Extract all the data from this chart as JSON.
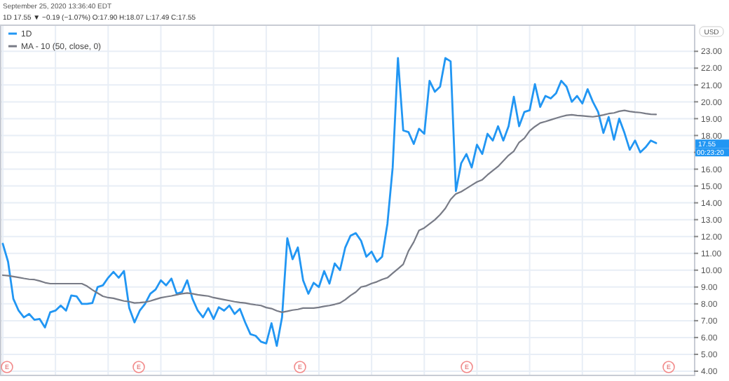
{
  "chart_data": {
    "type": "line",
    "legend": "top left",
    "grid": true,
    "tick_labels": "y",
    "marker": "none",
    "annotations": [
      "September 25, 2020 13:36:40 EDT",
      "1D 17.55 ▼ −0.19 (−1.07%) O:17.90 H:18.07 L:17.49 C:17.55",
      "USD",
      "17.55",
      "00:23:20",
      "E",
      "E",
      "E",
      "E",
      "E"
    ],
    "categories": [
      null,
      null,
      null,
      null,
      null,
      null,
      null,
      null,
      null,
      null,
      null,
      null,
      null,
      null,
      null,
      null,
      null,
      null,
      null,
      null,
      null,
      null,
      null,
      null,
      null,
      null,
      null,
      null,
      null,
      null,
      null,
      null,
      null,
      null,
      null,
      null,
      null,
      null,
      null,
      null,
      null,
      null,
      null,
      null,
      null,
      null,
      null,
      null,
      null,
      null,
      null,
      null,
      null,
      null,
      null,
      null,
      null,
      null,
      null,
      null,
      null,
      null,
      null,
      null,
      null,
      null,
      null,
      null,
      null,
      null,
      null,
      null,
      null,
      null,
      null,
      null,
      null,
      null,
      null,
      null,
      null,
      null,
      null,
      null,
      null,
      null,
      null,
      null,
      null,
      null,
      null,
      null,
      null,
      null,
      null,
      null,
      null,
      null,
      null,
      null,
      null,
      null,
      null,
      null,
      null,
      null,
      null,
      null,
      null,
      null,
      null,
      null,
      null,
      null,
      null,
      null,
      null,
      null,
      null,
      null,
      null,
      null,
      null,
      null,
      null
    ],
    "ylim": [
      3.75,
      24.55
    ],
    "yticks": [
      {
        "value": 4,
        "label": "4.00"
      },
      {
        "value": 5,
        "label": "5.00"
      },
      {
        "value": 6,
        "label": "6.00"
      },
      {
        "value": 7,
        "label": "7.00"
      },
      {
        "value": 8,
        "label": "8.00"
      },
      {
        "value": 9,
        "label": "9.00"
      },
      {
        "value": 10,
        "label": "10.00"
      },
      {
        "value": 11,
        "label": "11.00"
      },
      {
        "value": 12,
        "label": "12.00"
      },
      {
        "value": 13,
        "label": "13.00"
      },
      {
        "value": 14,
        "label": "14.00"
      },
      {
        "value": 15,
        "label": "15.00"
      },
      {
        "value": 16,
        "label": "16.00"
      },
      {
        "value": 17,
        "label": null
      },
      {
        "value": 18,
        "label": "18.00"
      },
      {
        "value": 19,
        "label": "19.00"
      },
      {
        "value": 20,
        "label": "20.00"
      },
      {
        "value": 21,
        "label": "21.00"
      },
      {
        "value": 22,
        "label": "22.00"
      },
      {
        "value": 23,
        "label": "23.00"
      }
    ],
    "series": [
      {
        "name": "1D",
        "color": "#2196f3",
        "values": [
          11.57,
          10.5,
          8.3,
          7.6,
          7.2,
          7.4,
          7.05,
          7.1,
          6.6,
          7.5,
          7.6,
          7.9,
          7.6,
          8.5,
          8.45,
          8.0,
          8.0,
          8.05,
          9.0,
          9.1,
          9.55,
          9.9,
          9.55,
          9.95,
          7.75,
          6.9,
          7.6,
          8.0,
          8.6,
          8.85,
          9.4,
          9.1,
          9.5,
          8.6,
          8.7,
          9.4,
          8.3,
          7.6,
          7.2,
          7.75,
          7.1,
          7.8,
          7.6,
          7.9,
          7.4,
          7.7,
          6.9,
          6.2,
          6.1,
          5.75,
          5.65,
          6.85,
          5.5,
          7.2,
          11.9,
          10.65,
          11.35,
          9.4,
          8.6,
          9.25,
          9.0,
          9.95,
          9.2,
          10.4,
          10.0,
          11.35,
          12.05,
          12.2,
          11.75,
          10.8,
          11.1,
          10.5,
          10.8,
          12.75,
          16.1,
          22.6,
          18.3,
          18.2,
          17.5,
          18.4,
          18.1,
          21.25,
          20.6,
          20.9,
          22.6,
          22.4,
          14.7,
          16.35,
          16.9,
          16.1,
          17.45,
          16.9,
          18.1,
          17.7,
          18.55,
          17.7,
          18.55,
          20.3,
          18.55,
          19.4,
          19.5,
          21.05,
          19.7,
          20.35,
          20.2,
          20.5,
          21.25,
          20.9,
          20.0,
          20.35,
          19.9,
          20.75,
          20.0,
          19.4,
          18.15,
          19.1,
          17.75,
          19.0,
          18.15,
          17.15,
          17.7,
          17.0,
          17.3,
          17.7,
          17.55
        ]
      },
      {
        "name": "MA - 10 (50, close, 0)",
        "color": "#787b86",
        "values": [
          9.7,
          9.67,
          9.62,
          9.57,
          9.51,
          9.46,
          9.44,
          9.36,
          9.26,
          9.2,
          9.2,
          9.2,
          9.2,
          9.2,
          9.2,
          9.2,
          9.05,
          8.83,
          8.64,
          8.45,
          8.37,
          8.33,
          8.25,
          8.17,
          8.13,
          8.05,
          8.07,
          8.1,
          8.17,
          8.27,
          8.36,
          8.42,
          8.47,
          8.54,
          8.6,
          8.64,
          8.6,
          8.54,
          8.5,
          8.46,
          8.37,
          8.31,
          8.25,
          8.19,
          8.13,
          8.08,
          8.05,
          7.99,
          7.94,
          7.9,
          7.78,
          7.72,
          7.59,
          7.5,
          7.56,
          7.63,
          7.67,
          7.75,
          7.75,
          7.75,
          7.79,
          7.85,
          7.9,
          7.97,
          8.05,
          8.25,
          8.5,
          8.7,
          9.0,
          9.07,
          9.21,
          9.31,
          9.45,
          9.55,
          9.82,
          10.08,
          10.35,
          11.14,
          11.67,
          12.36,
          12.51,
          12.75,
          12.99,
          13.3,
          13.67,
          14.2,
          14.53,
          14.66,
          14.85,
          15.05,
          15.24,
          15.37,
          15.66,
          15.91,
          16.16,
          16.49,
          16.82,
          17.07,
          17.59,
          17.84,
          18.27,
          18.53,
          18.74,
          18.83,
          18.93,
          19.03,
          19.12,
          19.2,
          19.23,
          19.19,
          19.17,
          19.14,
          19.11,
          19.16,
          19.22,
          19.3,
          19.34,
          19.44,
          19.49,
          19.43,
          19.39,
          19.36,
          19.3,
          19.26,
          19.25
        ]
      }
    ]
  }
}
